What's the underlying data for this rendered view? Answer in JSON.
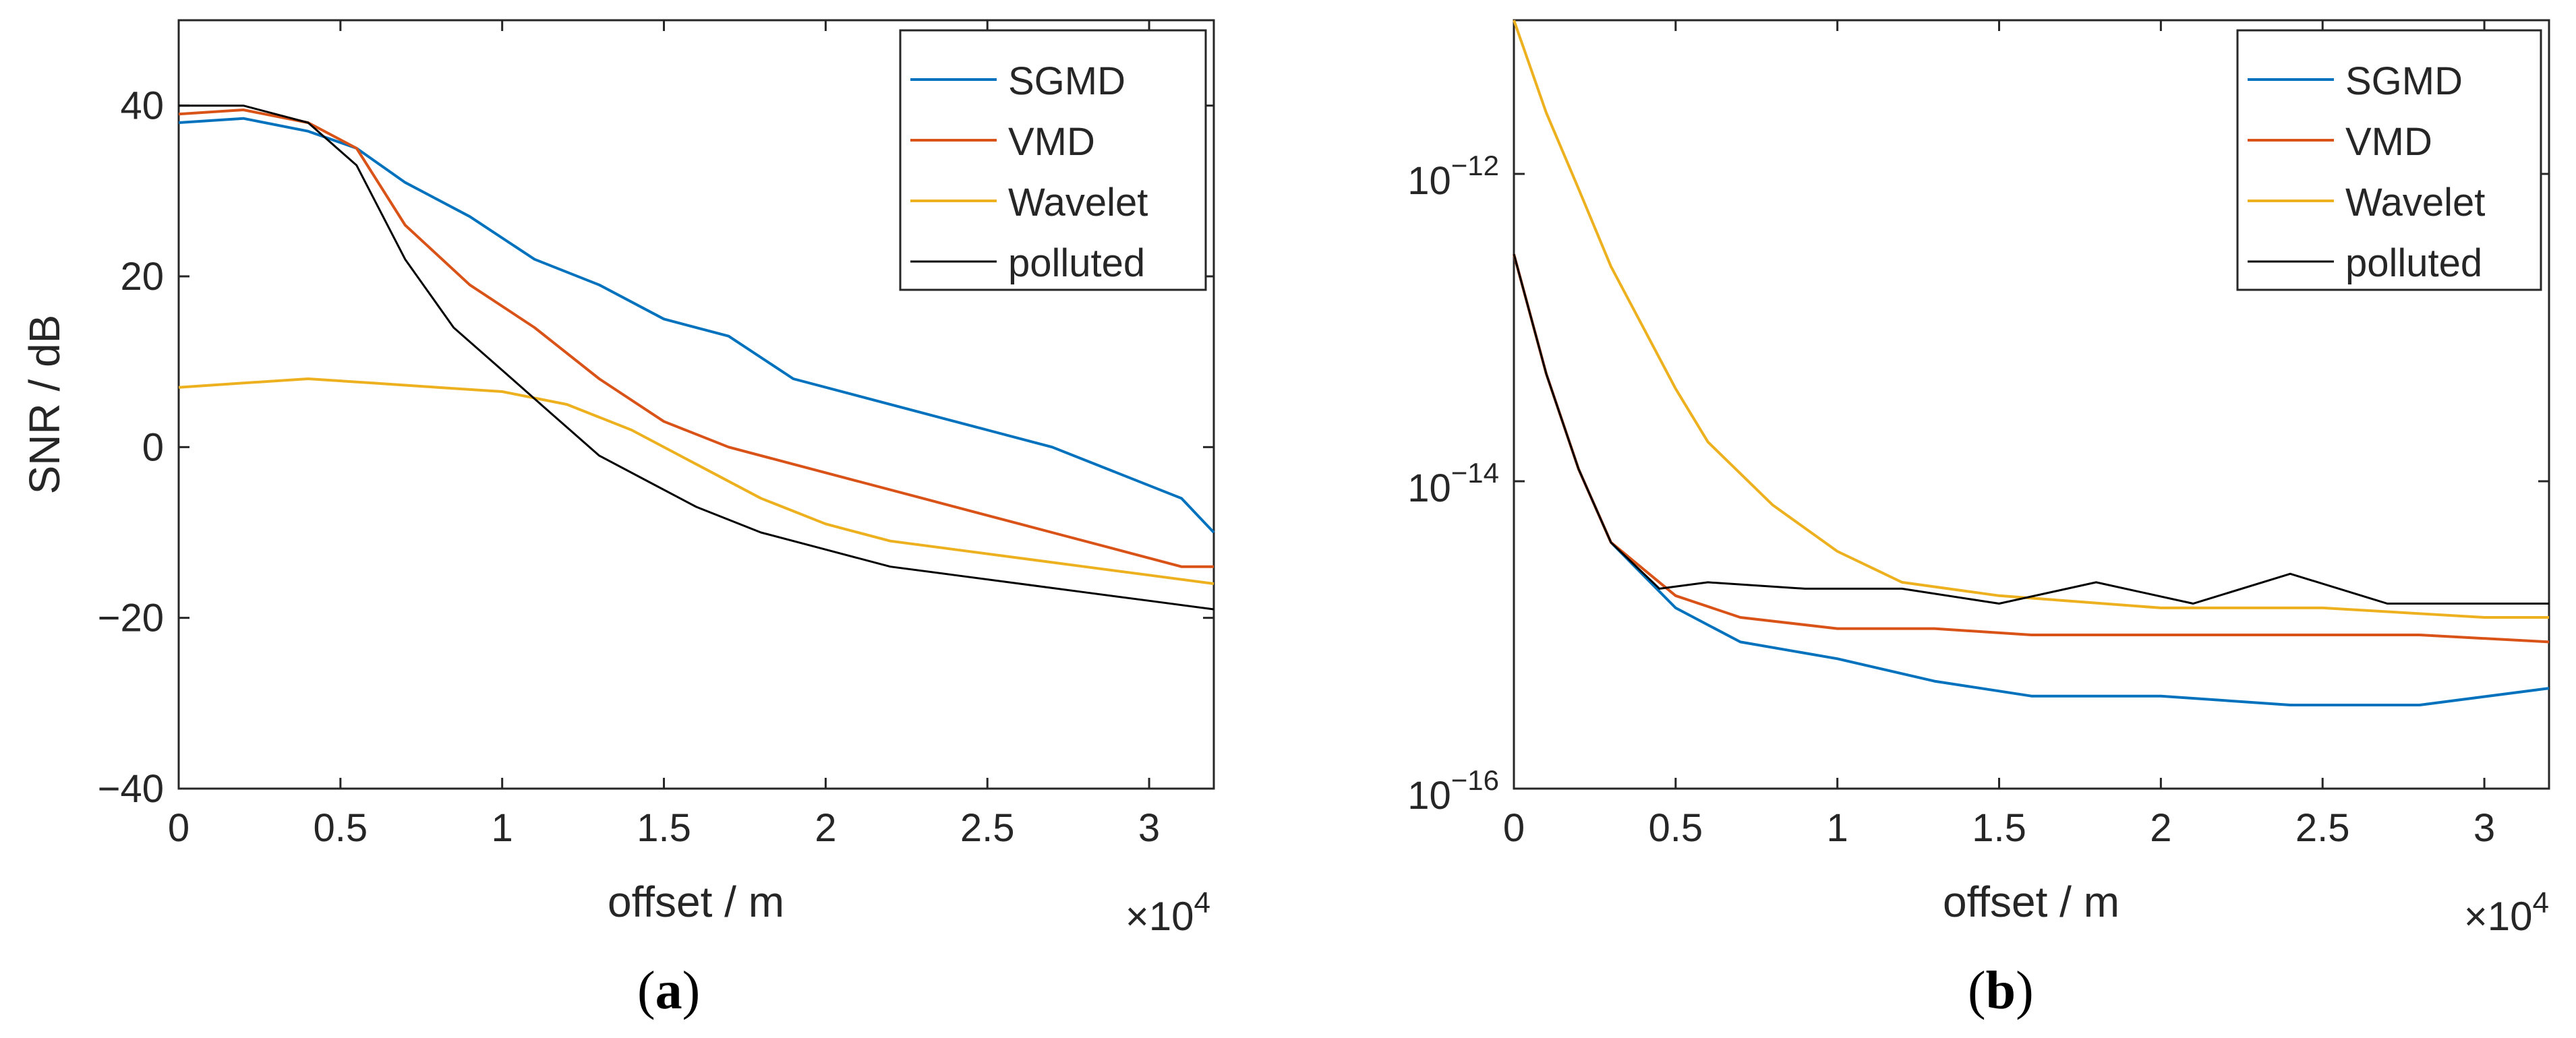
{
  "colors": {
    "SGMD": "#0072BD",
    "VMD": "#D95319",
    "Wavelet": "#EDB120",
    "polluted": "#000000",
    "axis": "#262626",
    "background": "#ffffff"
  },
  "chart_data": [
    {
      "type": "line",
      "panel": "a",
      "caption_letter": "a",
      "title": "",
      "xlabel": "offset / m",
      "ylabel": "SNR / dB",
      "x_multiplier_label": "×10",
      "x_multiplier_exp": "4",
      "xlim": [
        0,
        3.2
      ],
      "ylim": [
        -40,
        50
      ],
      "yscale": "linear",
      "xticks": [
        0,
        0.5,
        1,
        1.5,
        2,
        2.5,
        3
      ],
      "xtick_labels": [
        "0",
        "0.5",
        "1",
        "1.5",
        "2",
        "2.5",
        "3"
      ],
      "yticks": [
        -40,
        -20,
        0,
        20,
        40
      ],
      "ytick_labels": [
        "−40",
        "−20",
        "0",
        "20",
        "40"
      ],
      "legend_position": "top-right",
      "series": [
        {
          "name": "SGMD",
          "x": [
            0,
            0.2,
            0.4,
            0.55,
            0.7,
            0.9,
            1.1,
            1.3,
            1.5,
            1.7,
            1.9,
            2.1,
            2.3,
            2.5,
            2.7,
            2.9,
            3.1,
            3.2
          ],
          "y": [
            38,
            38.5,
            37,
            35,
            31,
            27,
            22,
            19,
            15,
            13,
            8,
            6,
            4,
            2,
            0,
            -3,
            -6,
            -10
          ]
        },
        {
          "name": "VMD",
          "x": [
            0,
            0.2,
            0.4,
            0.55,
            0.7,
            0.9,
            1.1,
            1.3,
            1.5,
            1.7,
            1.9,
            2.1,
            2.3,
            2.5,
            2.7,
            2.9,
            3.1,
            3.2
          ],
          "y": [
            39,
            39.5,
            38,
            35,
            26,
            19,
            14,
            8,
            3,
            0,
            -2,
            -4,
            -6,
            -8,
            -10,
            -12,
            -14,
            -14
          ]
        },
        {
          "name": "Wavelet",
          "x": [
            0,
            0.2,
            0.4,
            0.6,
            0.8,
            1.0,
            1.2,
            1.4,
            1.6,
            1.8,
            2.0,
            2.2,
            2.4,
            2.6,
            2.8,
            3.0,
            3.2
          ],
          "y": [
            7,
            7.5,
            8,
            7.5,
            7,
            6.5,
            5,
            2,
            -2,
            -6,
            -9,
            -11,
            -12,
            -13,
            -14,
            -15,
            -16
          ]
        },
        {
          "name": "polluted",
          "x": [
            0,
            0.2,
            0.4,
            0.55,
            0.7,
            0.85,
            1.0,
            1.15,
            1.3,
            1.45,
            1.6,
            1.8,
            2.0,
            2.2,
            2.4,
            2.6,
            2.8,
            3.0,
            3.2
          ],
          "y": [
            40,
            40,
            38,
            33,
            22,
            14,
            9,
            4,
            -1,
            -4,
            -7,
            -10,
            -12,
            -14,
            -15,
            -16,
            -17,
            -18,
            -19
          ]
        }
      ]
    },
    {
      "type": "line",
      "panel": "b",
      "caption_letter": "b",
      "title": "",
      "xlabel": "offset / m",
      "ylabel": "",
      "x_multiplier_label": "×10",
      "x_multiplier_exp": "4",
      "xlim": [
        0,
        3.2
      ],
      "ylim": [
        1e-16,
        1e-11
      ],
      "yscale": "log",
      "xticks": [
        0,
        0.5,
        1,
        1.5,
        2,
        2.5,
        3
      ],
      "xtick_labels": [
        "0",
        "0.5",
        "1",
        "1.5",
        "2",
        "2.5",
        "3"
      ],
      "yticks_exp": [
        -16,
        -14,
        -12
      ],
      "ytick_base": "10",
      "ytick_exp_labels": [
        "−16",
        "−14",
        "−12"
      ],
      "legend_position": "top-right",
      "series": [
        {
          "name": "SGMD",
          "x": [
            0,
            0.1,
            0.2,
            0.3,
            0.5,
            0.7,
            1.0,
            1.3,
            1.6,
            2.0,
            2.4,
            2.8,
            3.2
          ],
          "y": [
            3e-13,
            5e-14,
            1.2e-14,
            4e-15,
            1.5e-15,
            9e-16,
            7e-16,
            5e-16,
            4e-16,
            4e-16,
            3.5e-16,
            3.5e-16,
            4.5e-16
          ]
        },
        {
          "name": "VMD",
          "x": [
            0,
            0.1,
            0.2,
            0.3,
            0.5,
            0.7,
            1.0,
            1.3,
            1.6,
            2.0,
            2.4,
            2.8,
            3.2
          ],
          "y": [
            3e-13,
            5e-14,
            1.2e-14,
            4e-15,
            1.8e-15,
            1.3e-15,
            1.1e-15,
            1.1e-15,
            1e-15,
            1e-15,
            1e-15,
            1e-15,
            9e-16
          ]
        },
        {
          "name": "Wavelet",
          "x": [
            0,
            0.1,
            0.2,
            0.3,
            0.4,
            0.5,
            0.6,
            0.8,
            1.0,
            1.2,
            1.5,
            2.0,
            2.5,
            3.0,
            3.2
          ],
          "y": [
            1e-11,
            2.5e-12,
            8e-13,
            2.5e-13,
            1e-13,
            4e-14,
            1.8e-14,
            7e-15,
            3.5e-15,
            2.2e-15,
            1.8e-15,
            1.5e-15,
            1.5e-15,
            1.3e-15,
            1.3e-15
          ]
        },
        {
          "name": "polluted",
          "x": [
            0,
            0.1,
            0.2,
            0.3,
            0.45,
            0.6,
            0.9,
            1.2,
            1.5,
            1.8,
            2.1,
            2.4,
            2.7,
            3.0,
            3.2
          ],
          "y": [
            3e-13,
            5e-14,
            1.2e-14,
            4e-15,
            2e-15,
            2.2e-15,
            2e-15,
            2e-15,
            1.6e-15,
            2.2e-15,
            1.6e-15,
            2.5e-15,
            1.6e-15,
            1.6e-15,
            1.6e-15
          ]
        }
      ]
    }
  ]
}
